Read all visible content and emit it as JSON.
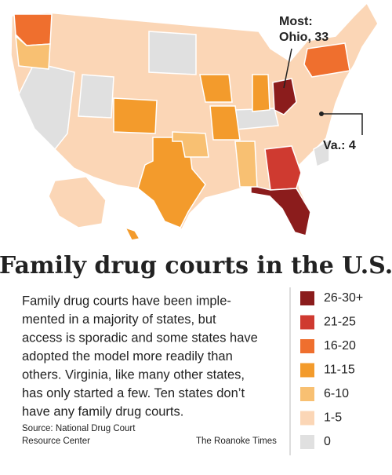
{
  "map": {
    "annotations": {
      "most": [
        "Most:",
        "Ohio, 33"
      ],
      "virginia": "Va.: 4"
    }
  },
  "title": "Family drug courts in the U.S.",
  "body": [
    "Family drug courts have been imple-",
    "mented in a majority of states, but",
    "access is sporadic and some states have",
    "adopted the model more readily than",
    "others. Virginia, like many other states,",
    "has only started a few. Ten states don’t",
    "have any family drug courts."
  ],
  "legend": [
    {
      "label": "26-30+",
      "color": "#8b1c1c"
    },
    {
      "label": "21-25",
      "color": "#cf3a30"
    },
    {
      "label": "16-20",
      "color": "#ef6f2e"
    },
    {
      "label": "11-15",
      "color": "#f39b2c"
    },
    {
      "label": "6-10",
      "color": "#f8c072"
    },
    {
      "label": "1-5",
      "color": "#fbd6b6"
    },
    {
      "label": "0",
      "color": "#e0e0e0"
    }
  ],
  "source": [
    "Source: National Drug Court",
    "Resource Center"
  ],
  "credit": "The Roanoke Times"
}
